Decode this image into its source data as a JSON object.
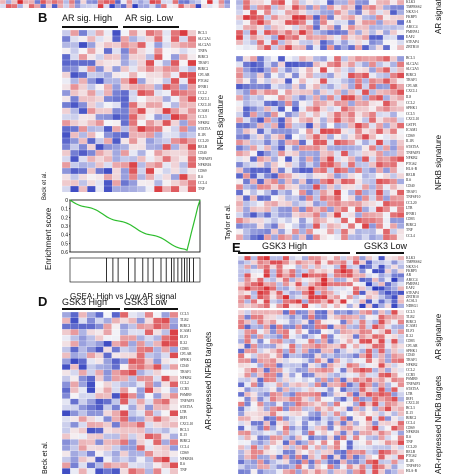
{
  "colors": {
    "high": "#d7191c",
    "low": "#2c3bbf",
    "mid": "#f4f4f8"
  },
  "panels": {
    "B": {
      "letter": "B",
      "group_high": "AR sig. High",
      "group_low": "AR sig. Low",
      "side_label": "NFkB signature",
      "dataset": "Beck et al.",
      "genes": [
        "BCL3",
        "SLC2A1",
        "SLC2A5",
        "TNFA",
        "BIRC3",
        "TRAF1",
        "BIRC2",
        "CFLAR",
        "PTGS2",
        "IFNB1",
        "CCL2",
        "CXCL1",
        "CXCL10",
        "ICAM1",
        "CCL5",
        "NFKB2",
        "STAT5A",
        "IL1B",
        "CCL20",
        "RELB",
        "CD40",
        "TNFAIP3",
        "NFKBIA",
        "CD69",
        "IL6",
        "CCL4",
        "TNF"
      ]
    },
    "GSEA": {
      "ylabel": "Enrichment score",
      "title": "GSEA: High vs Low AR signal",
      "ticks": [
        "0",
        "0.1",
        "0.2",
        "0.3",
        "0.4",
        "0.5",
        "0.6"
      ]
    },
    "C": {
      "side_label_top": "AR signature",
      "side_label": "NFkB signature",
      "dataset": "Taylor et al.",
      "genes_top": [
        "KLK3",
        "TMPRSS2",
        "NKX3-1",
        "FKBP5",
        "AR",
        "ABCC4",
        "PMEPA1",
        "EAF2",
        "STEAP4",
        "ZBTB10"
      ],
      "genes": [
        "BCL3",
        "SLC2A1",
        "SLC2A5",
        "BIRC3",
        "TRAF1",
        "CFLAR",
        "CXCL1",
        "IL8",
        "CCL2",
        "SPHK1",
        "CCL5",
        "CXCL10",
        "GSTP1",
        "ICAM1",
        "CD69",
        "IL1B",
        "STAT5A",
        "TNFAIP3",
        "NFKB2",
        "PTGS2",
        "HLA-B",
        "RELB",
        "IL6",
        "CD40",
        "TRAF1",
        "TNFSF10",
        "CCL20",
        "LTB",
        "IFNB1",
        "CD83",
        "BIRC2",
        "TNF",
        "CCL4"
      ]
    },
    "D": {
      "letter": "D",
      "group_high": "GSK3 High",
      "group_low": "GSK3 Low",
      "side_label": "AR-repressed NFkB targets",
      "dataset": "Beck et al.",
      "genes": [
        "CCL5",
        "TLR2",
        "BIRC3",
        "ICAM1",
        "ELF3",
        "IL32",
        "CD83",
        "CFLAR",
        "SPHK1",
        "CD40",
        "TRAF1",
        "NFKB2",
        "CCL2",
        "CCR5",
        "PSMB9",
        "TNFAIP3",
        "STAT5A",
        "LTB",
        "IRF1",
        "CXCL10",
        "BCL3",
        "IL15",
        "BIRC2",
        "CCL4",
        "CD69",
        "NFKBIA",
        "IL6",
        "TNF"
      ]
    },
    "E": {
      "letter": "E",
      "group_high": "GSK3 High",
      "group_low": "GSK3 Low",
      "side_label_top": "AR signature",
      "side_label": "AR-repressed NFkB targets",
      "genes_top": [
        "KLK3",
        "TMPRSS2",
        "NKX3-1",
        "FKBP5",
        "AR",
        "ABCC4",
        "PMEPA1",
        "EAF2",
        "STEAP4",
        "ZBTB10",
        "ACSL3",
        "NDRG1"
      ],
      "genes": [
        "CCL5",
        "TLR2",
        "BIRC3",
        "ICAM1",
        "ELF3",
        "IL32",
        "CD83",
        "CFLAR",
        "SPHK1",
        "CD40",
        "TRAF1",
        "NFKB2",
        "CCL2",
        "CCR5",
        "PSMB9",
        "TNFAIP3",
        "STAT5A",
        "LTB",
        "IRF1",
        "CXCL10",
        "BCL3",
        "IL15",
        "BIRC2",
        "CCL4",
        "CD69",
        "NFKBIA",
        "IL6",
        "TNF",
        "CCL20",
        "RELB",
        "PTGS2",
        "IL1B",
        "TNFSF10",
        "HLA-B"
      ]
    }
  }
}
